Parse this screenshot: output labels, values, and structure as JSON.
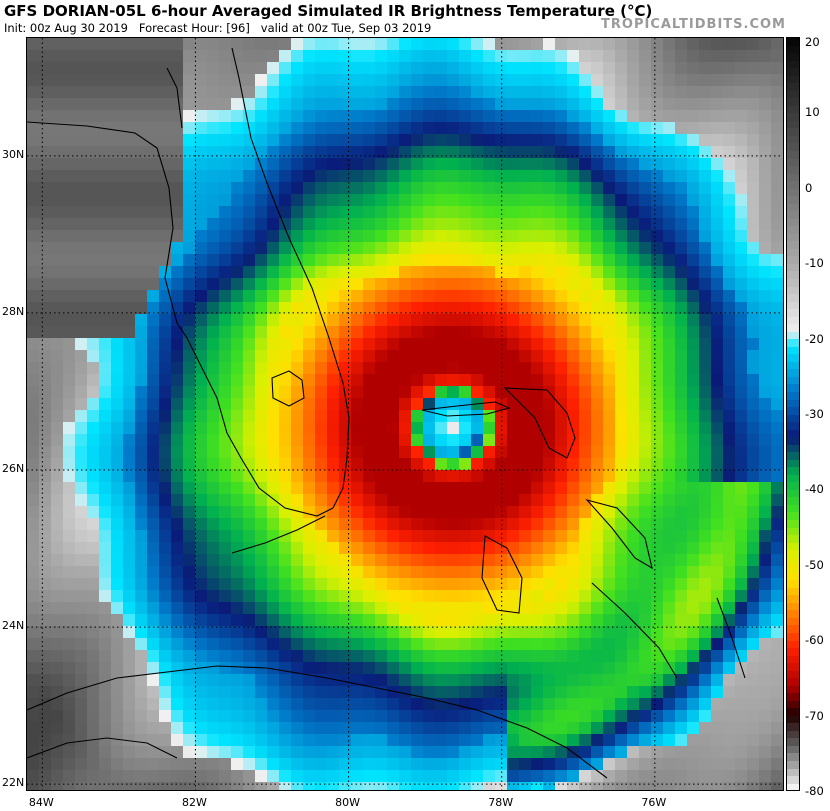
{
  "header": {
    "title": "GFS DORIAN-05L 6-hour Averaged Simulated IR Brightness Temperature (°C)",
    "init": "Init: 00z Aug 30 2019",
    "forecast_hour": "Forecast Hour: [96]",
    "valid": "valid at 00z Tue, Sep 03 2019",
    "brand": "TROPICALTIDBITS.COM"
  },
  "map": {
    "lat_labels": [
      {
        "label": "30N",
        "lat": 30
      },
      {
        "label": "28N",
        "lat": 28
      },
      {
        "label": "26N",
        "lat": 26
      },
      {
        "label": "24N",
        "lat": 24
      },
      {
        "label": "22N",
        "lat": 22
      }
    ],
    "lon_labels": [
      {
        "label": "84W",
        "lon": -84
      },
      {
        "label": "82W",
        "lon": -82
      },
      {
        "label": "80W",
        "lon": -80
      },
      {
        "label": "78W",
        "lon": -78
      },
      {
        "label": "76W",
        "lon": -76
      }
    ],
    "lon_range": [
      -84.2,
      -74.3
    ],
    "lat_range": [
      21.9,
      31.5
    ],
    "storm_center": {
      "lon": -78.65,
      "lat": 26.55
    }
  },
  "colorbar": {
    "labels": [
      "20",
      "10",
      "0",
      "-10",
      "-20",
      "-30",
      "-40",
      "-50",
      "-60",
      "-70",
      "-80"
    ],
    "range": [
      20,
      -80
    ],
    "stops": [
      {
        "t": 20,
        "color": "#050505"
      },
      {
        "t": 5,
        "color": "#555555"
      },
      {
        "t": -10,
        "color": "#aaaaaa"
      },
      {
        "t": -19,
        "color": "#f0f0f0"
      },
      {
        "t": -21,
        "color": "#00e5ff"
      },
      {
        "t": -27,
        "color": "#0078c8"
      },
      {
        "t": -33,
        "color": "#0a1a78"
      },
      {
        "t": -38,
        "color": "#00b050"
      },
      {
        "t": -43,
        "color": "#40e020"
      },
      {
        "t": -48,
        "color": "#d8f000"
      },
      {
        "t": -52,
        "color": "#ffe000"
      },
      {
        "t": -56,
        "color": "#ff8c00"
      },
      {
        "t": -61,
        "color": "#ff2000"
      },
      {
        "t": -66,
        "color": "#b00000"
      },
      {
        "t": -70,
        "color": "#200000"
      },
      {
        "t": -74,
        "color": "#606060"
      },
      {
        "t": -80,
        "color": "#ffffff"
      }
    ]
  }
}
